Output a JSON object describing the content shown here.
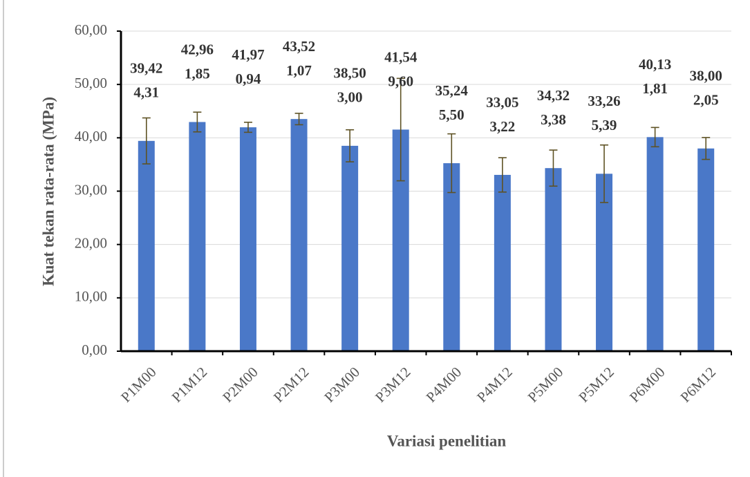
{
  "chart_data": {
    "type": "bar",
    "x_label": "Variasi penelitian",
    "y_label": "Kuat tekan rata-rata (MPa)",
    "categories": [
      "P1M00",
      "P1M12",
      "P2M00",
      "P2M12",
      "P3M00",
      "P3M12",
      "P4M00",
      "P4M12",
      "P5M00",
      "P5M12",
      "P6M00",
      "P6M12"
    ],
    "values": [
      39.42,
      42.96,
      41.97,
      43.52,
      38.5,
      41.54,
      35.24,
      33.05,
      34.32,
      33.26,
      40.13,
      38.0
    ],
    "value_labels": [
      "39,42",
      "42,96",
      "41,97",
      "43,52",
      "38,50",
      "41,54",
      "35,24",
      "33,05",
      "34,32",
      "33,26",
      "40,13",
      "38,00"
    ],
    "errors": [
      4.31,
      1.85,
      0.94,
      1.07,
      3.0,
      9.6,
      5.5,
      3.22,
      3.38,
      5.39,
      1.81,
      2.05
    ],
    "error_labels": [
      "4,31",
      "1,85",
      "0,94",
      "1,07",
      "3,00",
      "9,60",
      "5,50",
      "3,22",
      "3,38",
      "5,39",
      "1,81",
      "2,05"
    ],
    "color": "#4a78c8",
    "error_color": "#5e5224",
    "ylim": [
      0,
      60
    ],
    "yticks": [
      {
        "value": 0,
        "label": "0,00"
      },
      {
        "value": 10,
        "label": "10,00"
      },
      {
        "value": 20,
        "label": "20,00"
      },
      {
        "value": 30,
        "label": "30,00"
      },
      {
        "value": 40,
        "label": "40,00"
      },
      {
        "value": 50,
        "label": "50,00"
      },
      {
        "value": 60,
        "label": "60,00"
      }
    ],
    "grid": true
  }
}
